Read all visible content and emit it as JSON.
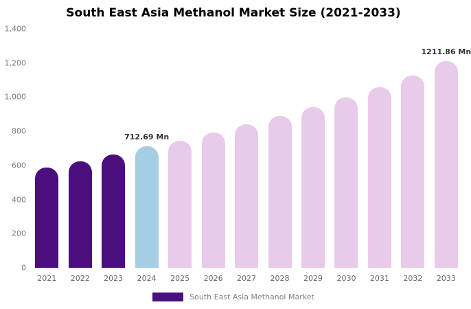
{
  "chart_data": {
    "type": "bar",
    "title": "South East Asia Methanol Market Size (2021-2033)",
    "xlabel": "",
    "ylabel": "",
    "unit": "Mn",
    "categories": [
      "2021",
      "2022",
      "2023",
      "2024",
      "2025",
      "2026",
      "2027",
      "2028",
      "2029",
      "2030",
      "2031",
      "2032",
      "2033"
    ],
    "values": [
      588,
      625,
      665,
      712.69,
      745,
      793,
      840,
      890,
      942,
      998,
      1058,
      1125,
      1211.86
    ],
    "bar_colors": [
      "#4A0E7F",
      "#4A0E7F",
      "#4A0E7F",
      "#A5CEE4",
      "#E9CAEA",
      "#E9CAEA",
      "#E9CAEA",
      "#E9CAEA",
      "#E9CAEA",
      "#E9CAEA",
      "#E9CAEA",
      "#E9CAEA",
      "#E9CAEA"
    ],
    "ylim": [
      0,
      1400
    ],
    "yticks": [
      {
        "value": 0,
        "label": "0"
      },
      {
        "value": 200,
        "label": "200"
      },
      {
        "value": 400,
        "label": "400"
      },
      {
        "value": 600,
        "label": "600"
      },
      {
        "value": 800,
        "label": "800"
      },
      {
        "value": 1000,
        "label": "1,000"
      },
      {
        "value": 1200,
        "label": "1,200"
      },
      {
        "value": 1400,
        "label": "1,400"
      }
    ],
    "annotations": [
      {
        "index": 3,
        "text": "712.69 Mn"
      },
      {
        "index": 12,
        "text": "1211.86 Mn"
      }
    ],
    "grid": false,
    "legend_position": "bottom"
  },
  "legend": {
    "label": "South East Asia Methanol Market",
    "swatch_color": "#4A0E7F"
  }
}
